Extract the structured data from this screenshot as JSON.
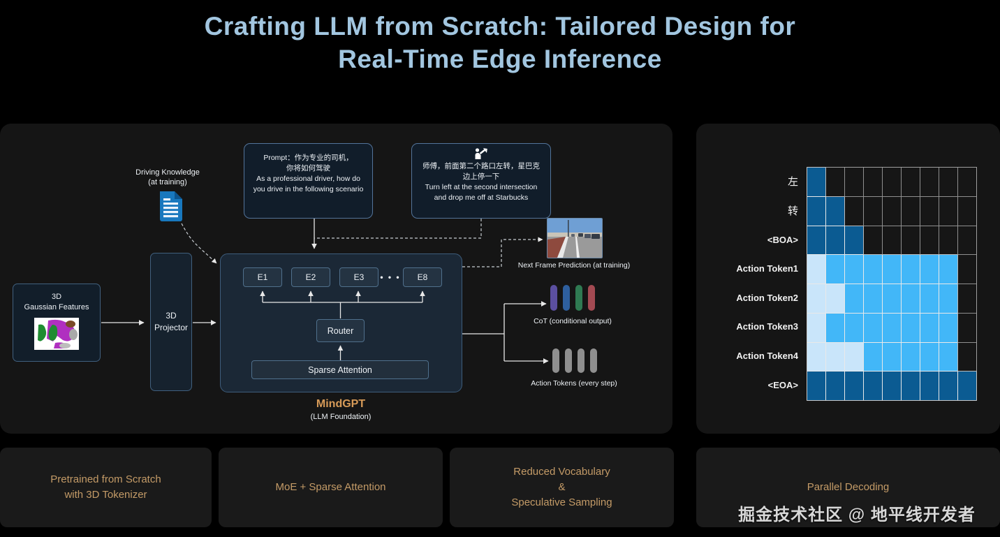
{
  "title": {
    "line1": "Crafting LLM from Scratch: Tailored Design for",
    "line2": "Real-Time Edge Inference"
  },
  "colors": {
    "title": "#a2c6e0",
    "gold_text": "#c49b67",
    "mindgpt_label": "#d69a58",
    "doc_icon_blue": "#1878be",
    "grid_dark_blue": "#0b5b92",
    "grid_mid_blue": "#42b7f8",
    "grid_pale_blue": "#c9e5fa",
    "grid_empty": "#161616"
  },
  "left_panel": {
    "driving_knowledge": {
      "line1": "Driving Knowledge",
      "line2": "(at training)",
      "icon": "document-icon"
    },
    "prompt_box": {
      "lines": [
        "Prompt：作为专业的司机，",
        "你将如何驾驶",
        "As a professional driver, how do",
        "you drive in the following scenario"
      ]
    },
    "dialog_box": {
      "icon": "person-voice-arrow-icon",
      "lines": [
        "师傅，前面第二个路口左转，星巴克",
        "边上停一下",
        "Turn left at the second intersection",
        "and drop me off at Starbucks"
      ]
    },
    "gaussian_box": {
      "line1": "3D",
      "line2": "Gaussian Features"
    },
    "projector_box": {
      "line1": "3D",
      "line2": "Projector"
    },
    "experts": [
      "E1",
      "E2",
      "E3",
      "E8"
    ],
    "dots": "• • •",
    "router_label": "Router",
    "sparse_attention_label": "Sparse Attention",
    "mindgpt_label": "MindGPT",
    "mindgpt_sub": "(LLM Foundation)",
    "next_frame_label": "Next Frame Prediction (at training)",
    "cot_label": "CoT (conditional output)",
    "cot_bar_colors": [
      "#5b4fa0",
      "#2e5f9e",
      "#2f7a52",
      "#a34a52"
    ],
    "action_label": "Action Tokens (every step)",
    "action_bar_colors": [
      "#8f8f8f",
      "#8f8f8f",
      "#8f8f8f",
      "#8f8f8f"
    ]
  },
  "attention_grid": {
    "type": "heatmap",
    "row_labels": [
      "左",
      "转",
      "<BOA>",
      "Action Token1",
      "Action Token2",
      "Action Token3",
      "Action Token4",
      "<EOA>"
    ],
    "columns": 9,
    "cells": [
      [
        "D",
        "K",
        "K",
        "K",
        "K",
        "K",
        "K",
        "K",
        "K"
      ],
      [
        "D",
        "D",
        "K",
        "K",
        "K",
        "K",
        "K",
        "K",
        "K"
      ],
      [
        "D",
        "D",
        "D",
        "K",
        "K",
        "K",
        "K",
        "K",
        "K"
      ],
      [
        "P",
        "M",
        "M",
        "M",
        "M",
        "M",
        "M",
        "M",
        "K"
      ],
      [
        "P",
        "P",
        "M",
        "M",
        "M",
        "M",
        "M",
        "M",
        "K"
      ],
      [
        "P",
        "M",
        "M",
        "M",
        "M",
        "M",
        "M",
        "M",
        "K"
      ],
      [
        "P",
        "P",
        "P",
        "M",
        "M",
        "M",
        "M",
        "M",
        "K"
      ],
      [
        "D",
        "D",
        "D",
        "D",
        "D",
        "D",
        "D",
        "D",
        "D"
      ]
    ],
    "legend": {
      "D": "#0b5b92",
      "M": "#42b7f8",
      "P": "#c9e5fa",
      "K": "#161616"
    }
  },
  "bottom_boxes": [
    {
      "lines": [
        "Pretrained from Scratch",
        "with 3D Tokenizer"
      ]
    },
    {
      "lines": [
        "MoE + Sparse Attention"
      ]
    },
    {
      "lines": [
        "Reduced Vocabulary",
        "&",
        "Speculative Sampling"
      ]
    },
    {
      "lines": [
        "Parallel Decoding"
      ]
    }
  ],
  "watermark": "掘金技术社区 @ 地平线开发者"
}
